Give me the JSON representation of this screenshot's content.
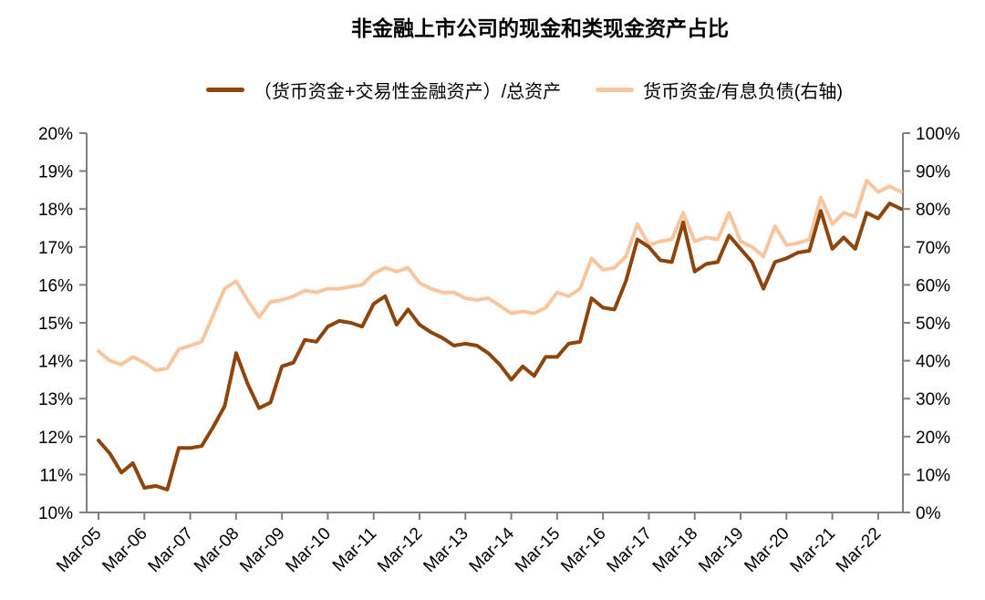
{
  "chart_data": {
    "type": "line",
    "title": "非金融上市公司的现金和类现金资产占比",
    "legend_position": "top",
    "grid": false,
    "axis_color": "#7f7f7f",
    "text_color": "#000000",
    "categories": [
      "Mar-05",
      "Jun-05",
      "Sep-05",
      "Dec-05",
      "Mar-06",
      "Jun-06",
      "Sep-06",
      "Dec-06",
      "Mar-07",
      "Jun-07",
      "Sep-07",
      "Dec-07",
      "Mar-08",
      "Jun-08",
      "Sep-08",
      "Dec-08",
      "Mar-09",
      "Jun-09",
      "Sep-09",
      "Dec-09",
      "Mar-10",
      "Jun-10",
      "Sep-10",
      "Dec-10",
      "Mar-11",
      "Jun-11",
      "Sep-11",
      "Dec-11",
      "Mar-12",
      "Jun-12",
      "Sep-12",
      "Dec-12",
      "Mar-13",
      "Jun-13",
      "Sep-13",
      "Dec-13",
      "Mar-14",
      "Jun-14",
      "Sep-14",
      "Dec-14",
      "Mar-15",
      "Jun-15",
      "Sep-15",
      "Dec-15",
      "Mar-16",
      "Jun-16",
      "Sep-16",
      "Dec-16",
      "Mar-17",
      "Jun-17",
      "Sep-17",
      "Dec-17",
      "Mar-18",
      "Jun-18",
      "Sep-18",
      "Dec-18",
      "Mar-19",
      "Jun-19",
      "Sep-19",
      "Dec-19",
      "Mar-20",
      "Jun-20",
      "Sep-20",
      "Dec-20",
      "Mar-21",
      "Jun-21",
      "Sep-21",
      "Dec-21",
      "Mar-22",
      "Jun-22",
      "Sep-22"
    ],
    "x_tick_every": 4,
    "left_axis": {
      "min": 10,
      "max": 20,
      "step": 1,
      "format": "percent"
    },
    "right_axis": {
      "min": 0,
      "max": 100,
      "step": 10,
      "format": "percent"
    },
    "series": [
      {
        "name": "（货币资金+交易性金融资产）/总资产",
        "axis": "left",
        "color": "#8E450C",
        "values": [
          11.9,
          11.55,
          11.05,
          11.3,
          10.65,
          10.7,
          10.6,
          11.7,
          11.7,
          11.75,
          12.25,
          12.8,
          14.2,
          13.4,
          12.75,
          12.9,
          13.85,
          13.95,
          14.55,
          14.5,
          14.9,
          15.05,
          15.0,
          14.9,
          15.5,
          15.7,
          14.95,
          15.35,
          14.95,
          14.75,
          14.6,
          14.4,
          14.45,
          14.4,
          14.2,
          13.9,
          13.5,
          13.85,
          13.6,
          14.1,
          14.1,
          14.45,
          14.5,
          15.65,
          15.4,
          15.35,
          16.1,
          17.2,
          17.0,
          16.65,
          16.6,
          17.65,
          16.35,
          16.55,
          16.6,
          17.3,
          16.95,
          16.6,
          15.9,
          16.6,
          16.7,
          16.85,
          16.9,
          17.95,
          16.95,
          17.25,
          16.95,
          17.9,
          17.75,
          18.15,
          18.0
        ]
      },
      {
        "name": "货币资金/有息负债(右轴)",
        "axis": "right",
        "color": "#F7C59E",
        "values": [
          42.5,
          40,
          39,
          41,
          39.5,
          37.5,
          38,
          43,
          44,
          45,
          52,
          59,
          61,
          56,
          51.5,
          55.5,
          56,
          57,
          58.5,
          58,
          59,
          59,
          59.5,
          60,
          63,
          64.5,
          63.5,
          64.5,
          60.5,
          59,
          58,
          58,
          56.5,
          56,
          56.5,
          54.5,
          52.5,
          53,
          52.5,
          54,
          58,
          57,
          59,
          67,
          64,
          64.5,
          67.5,
          76,
          70.5,
          71.5,
          72,
          79,
          71.5,
          72.5,
          72,
          79,
          71.5,
          70,
          67.5,
          75.5,
          70.5,
          71,
          72,
          83,
          76,
          79,
          78,
          87.5,
          84.5,
          86,
          84.5
        ]
      }
    ]
  }
}
